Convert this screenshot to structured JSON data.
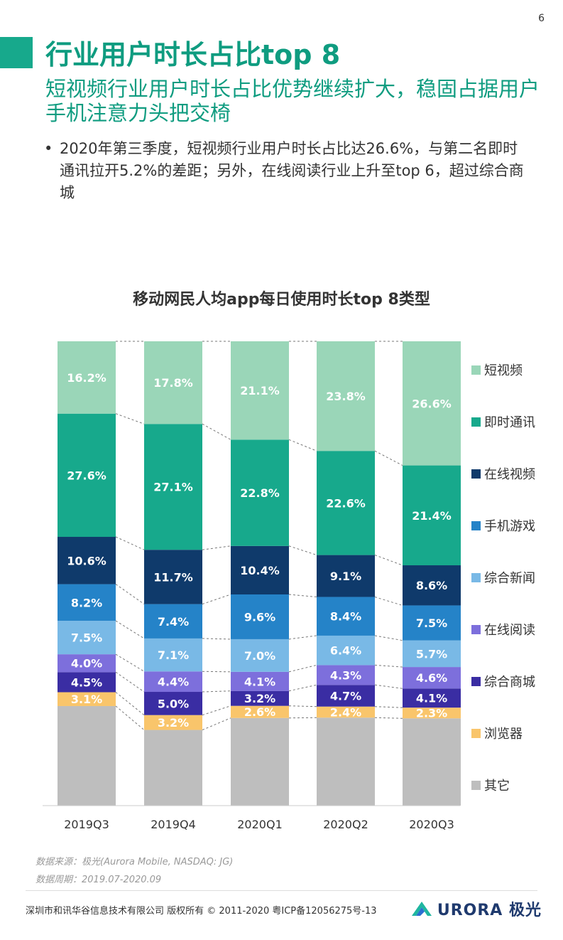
{
  "page_number": "6",
  "colors": {
    "accent": "#17a98c",
    "title_text": "#0f9c80"
  },
  "header": {
    "title": "行业用户时长占比top 8",
    "subtitle": "短视频行业用户时长占比优势继续扩大，稳固占据用户手机注意力头把交椅"
  },
  "bullet": {
    "dot": "•",
    "text": "2020年第三季度，短视频行业用户时长占比达26.6%，与第二名即时通讯拉开5.2%的差距；另外，在线阅读行业上升至top 6，超过综合商城"
  },
  "chart_data": {
    "type": "bar",
    "stacked": true,
    "percent_stacked": true,
    "title": "移动网民人均app每日使用时长top 8类型",
    "categories": [
      "2019Q3",
      "2019Q4",
      "2020Q1",
      "2020Q2",
      "2020Q3"
    ],
    "ylim": [
      0,
      100
    ],
    "grid": false,
    "legend_position": "right",
    "series": [
      {
        "name": "其它",
        "color": "#bebebe",
        "values": [
          22.3,
          16.3,
          18.8,
          19.1,
          18.7
        ],
        "labels": [
          "",
          "",
          "",
          "",
          ""
        ]
      },
      {
        "name": "浏览器",
        "color": "#f9c56b",
        "values": [
          3.1,
          3.2,
          2.6,
          2.4,
          2.3
        ],
        "labels": [
          "3.1%",
          "3.2%",
          "2.6%",
          "2.4%",
          "2.3%"
        ]
      },
      {
        "name": "综合商城",
        "color": "#3a2da3",
        "values": [
          4.5,
          5.0,
          3.2,
          4.7,
          4.1
        ],
        "labels": [
          "4.5%",
          "5.0%",
          "3.2%",
          "4.7%",
          "4.1%"
        ]
      },
      {
        "name": "在线阅读",
        "color": "#7d6fdc",
        "values": [
          4.0,
          4.4,
          4.1,
          4.3,
          4.6
        ],
        "labels": [
          "4.0%",
          "4.4%",
          "4.1%",
          "4.3%",
          "4.6%"
        ]
      },
      {
        "name": "综合新闻",
        "color": "#79b9e6",
        "values": [
          7.5,
          7.1,
          7.0,
          6.4,
          5.7
        ],
        "labels": [
          "7.5%",
          "7.1%",
          "7.0%",
          "6.4%",
          "5.7%"
        ]
      },
      {
        "name": "手机游戏",
        "color": "#2583c8",
        "values": [
          8.2,
          7.4,
          9.6,
          8.4,
          7.5
        ],
        "labels": [
          "8.2%",
          "7.4%",
          "9.6%",
          "8.4%",
          "7.5%"
        ]
      },
      {
        "name": "在线视频",
        "color": "#0f3a6b",
        "values": [
          10.6,
          11.7,
          10.4,
          9.1,
          8.6
        ],
        "labels": [
          "10.6%",
          "11.7%",
          "10.4%",
          "9.1%",
          "8.6%"
        ]
      },
      {
        "name": "即时通讯",
        "color": "#17a98c",
        "values": [
          27.6,
          27.1,
          22.8,
          22.6,
          21.4
        ],
        "labels": [
          "27.6%",
          "27.1%",
          "22.8%",
          "22.6%",
          "21.4%"
        ]
      },
      {
        "name": "短视频",
        "color": "#9ad6b8",
        "values": [
          16.2,
          17.8,
          21.1,
          23.8,
          26.6
        ],
        "labels": [
          "16.2%",
          "17.8%",
          "21.1%",
          "23.8%",
          "26.6%"
        ]
      }
    ],
    "legend_order": [
      "短视频",
      "即时通讯",
      "在线视频",
      "手机游戏",
      "综合新闻",
      "在线阅读",
      "综合商城",
      "浏览器",
      "其它"
    ]
  },
  "source": {
    "line1": "数据来源：极光(Aurora Mobile, NASDAQ: JG)",
    "line2": "数据周期：2019.07-2020.09"
  },
  "footer": {
    "copyright": "深圳市和讯华谷信息技术有限公司 版权所有 © 2011-2020 粤ICP备12056275号-13",
    "logo_text": "URORA 极光"
  }
}
